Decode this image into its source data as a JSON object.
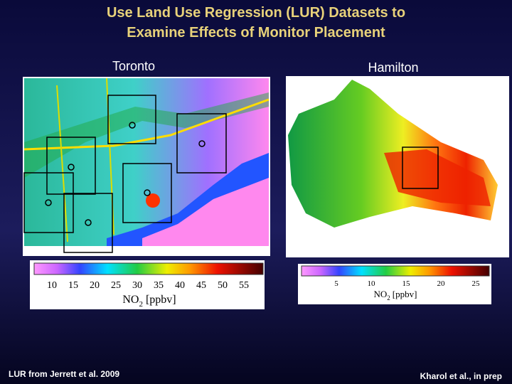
{
  "title": [
    "Use Land Use Regression (LUR) Datasets to",
    "Examine Effects of Monitor Placement"
  ],
  "panels": [
    {
      "label": "Toronto",
      "colorbar": {
        "ticks": [
          10,
          15,
          20,
          25,
          30,
          35,
          40,
          45,
          50,
          55
        ],
        "label": {
          "base": "NO",
          "sub": "2",
          "unit": "[ppbv]"
        }
      }
    },
    {
      "label": "Hamilton",
      "colorbar": {
        "ticks": [
          5,
          10,
          15,
          20,
          25
        ],
        "label": {
          "base": "NO",
          "sub": "2",
          "unit": "[ppbv]"
        }
      }
    }
  ],
  "footer": {
    "left": "LUR from Jerrett et al. 2009",
    "right": "Kharol et al., in prep"
  }
}
